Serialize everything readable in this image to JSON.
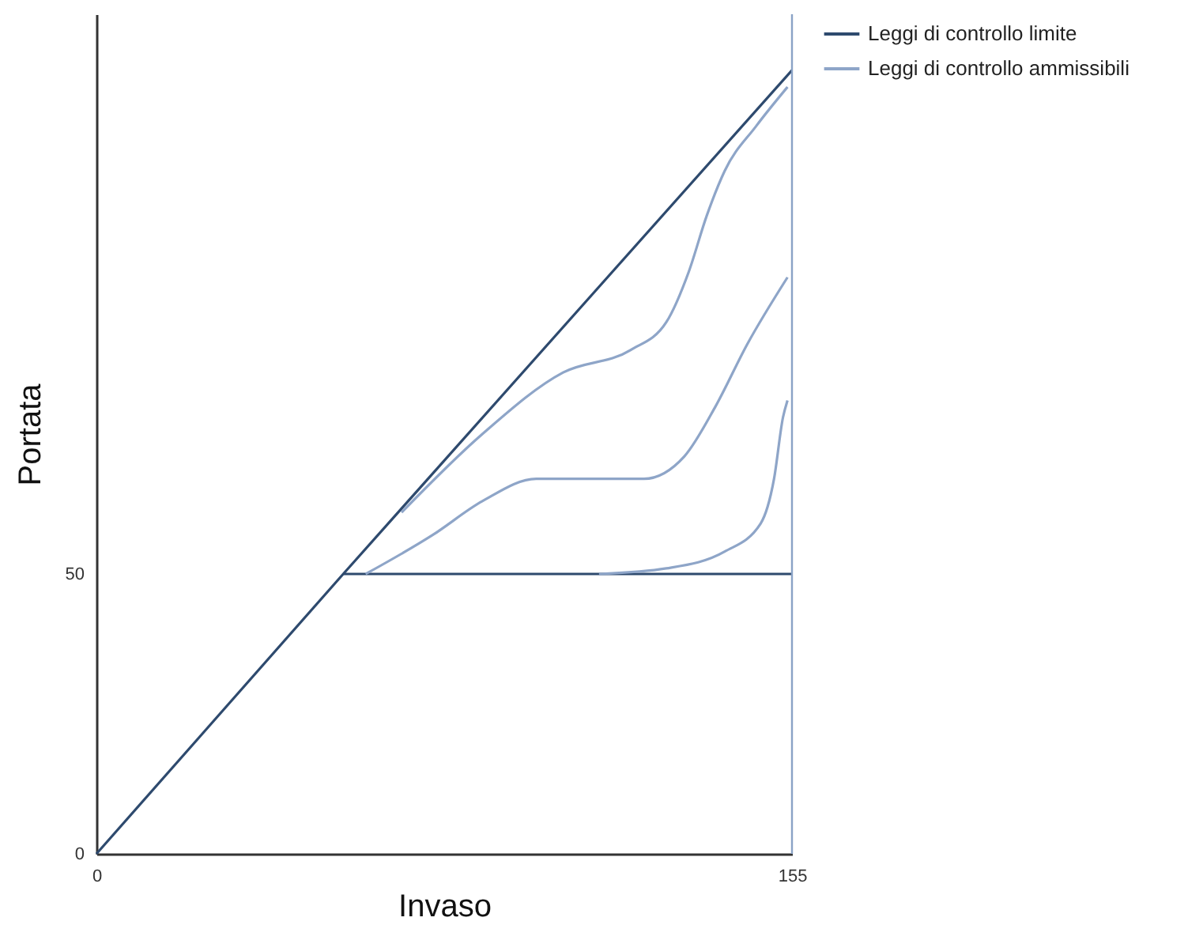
{
  "chart_data": {
    "type": "line",
    "xlabel": "Invaso",
    "ylabel": "Portata",
    "xlim": [
      0,
      155
    ],
    "ylim": [
      0,
      150
    ],
    "xticks": [
      0,
      155
    ],
    "yticks": [
      0,
      50
    ],
    "grid": false,
    "legend": "top right",
    "series": [
      {
        "name": "Leggi di controllo limite",
        "color": "#2e4a6e",
        "x": [
          0,
          55,
          155
        ],
        "values": [
          0,
          50,
          140
        ]
      },
      {
        "color": "#2e4a6e",
        "x": [
          55,
          155
        ],
        "values": [
          50,
          50
        ]
      },
      {
        "name": "Leggi di controllo ammissibili",
        "color": "#8ea5c8",
        "x": [
          68,
          86,
          104,
          119,
          127,
          132,
          136,
          140,
          147,
          154
        ],
        "values": [
          61,
          75,
          86,
          90,
          95,
          104,
          114,
          122,
          130,
          137
        ]
      },
      {
        "color": "#8ea5c8",
        "x": [
          60,
          75,
          86,
          98,
          110,
          122,
          131,
          138,
          145,
          154
        ],
        "values": [
          50,
          57,
          63,
          67,
          67,
          67,
          71,
          80,
          91,
          103
        ]
      },
      {
        "color": "#8ea5c8",
        "x": [
          112,
          127,
          140,
          148,
          151,
          153,
          154
        ],
        "values": [
          50,
          51,
          54,
          59,
          67,
          78,
          81
        ]
      }
    ],
    "ref_lines": [
      {
        "axis": "x",
        "value": 155,
        "color": "#8aa3c6"
      }
    ]
  }
}
